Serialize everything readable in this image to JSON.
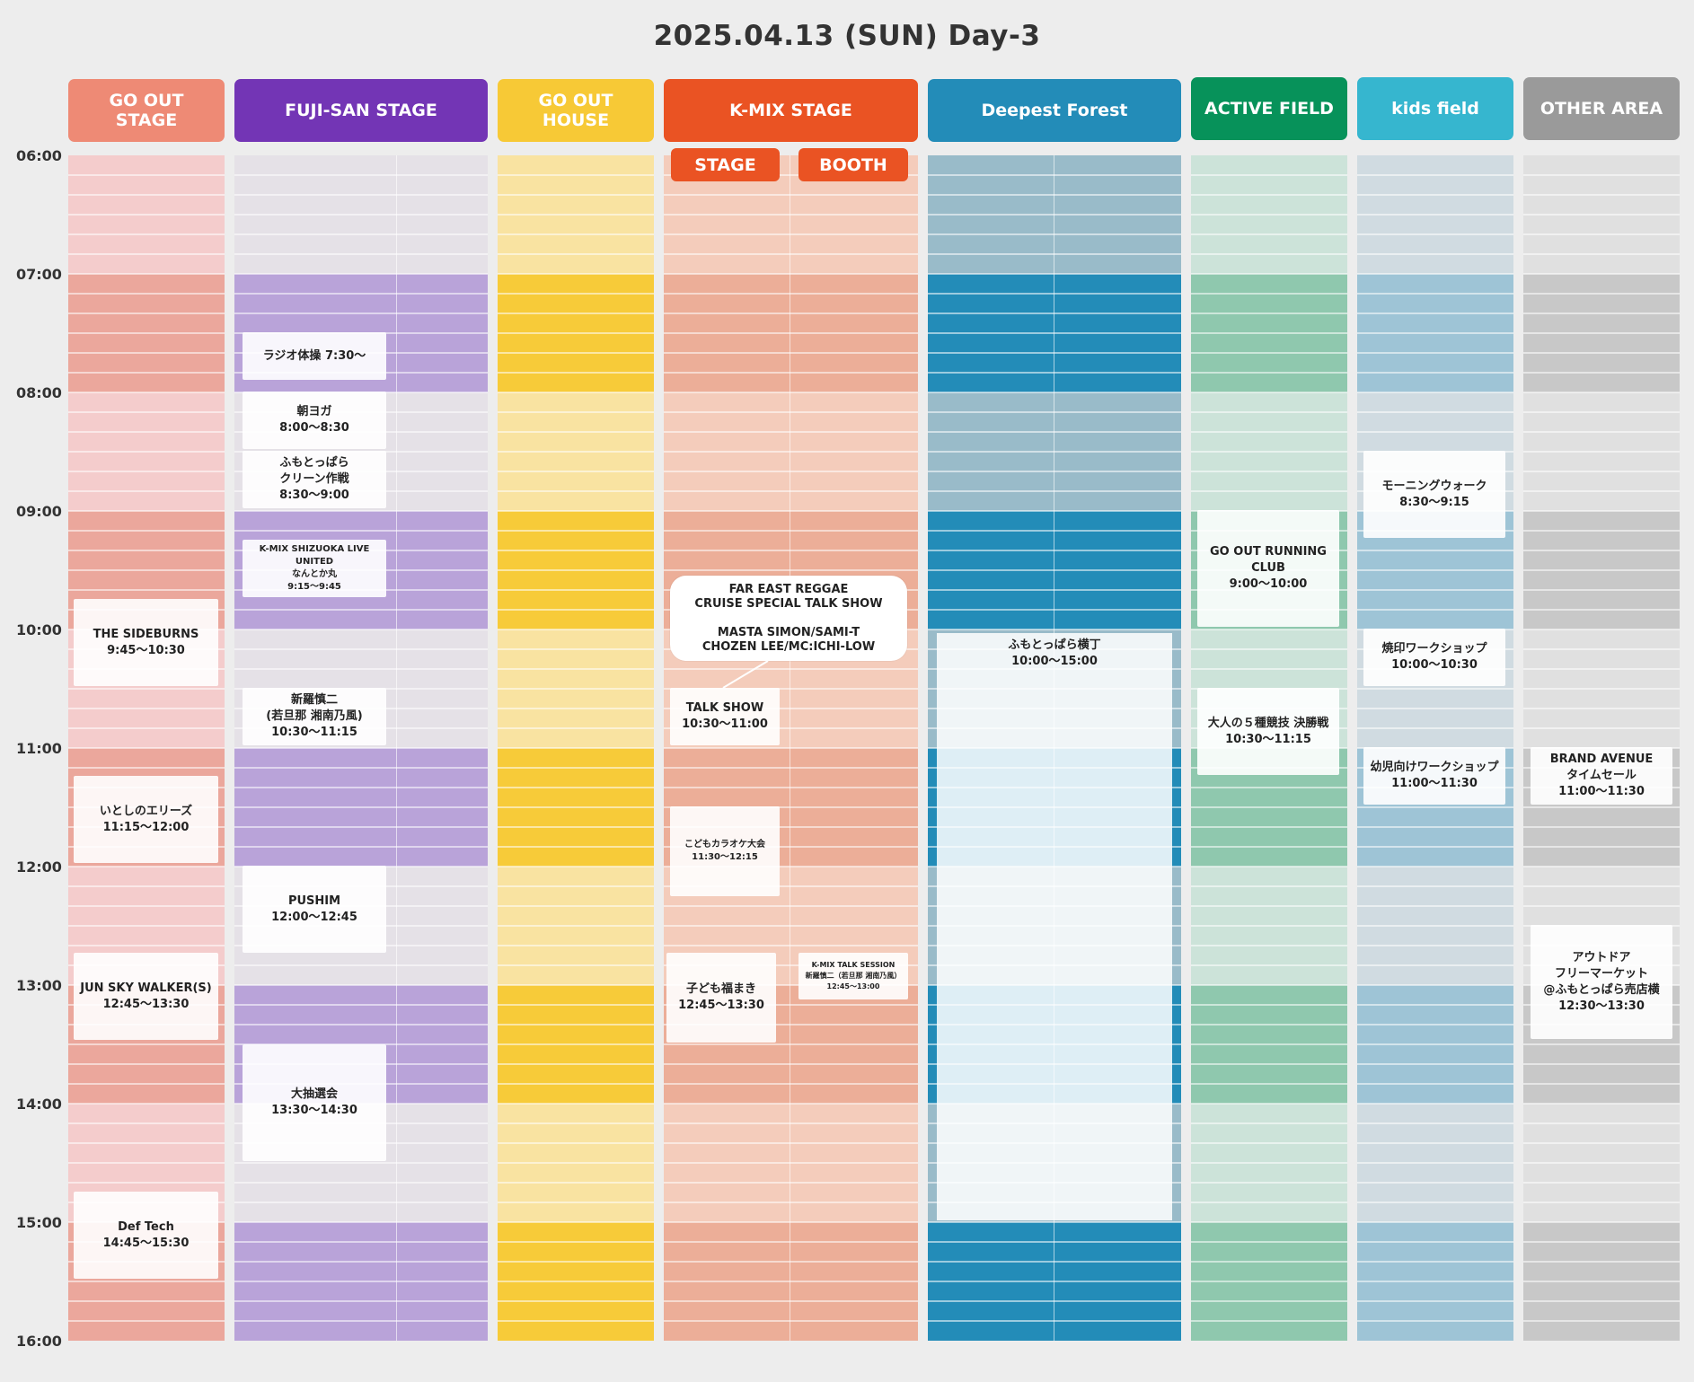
{
  "page_title": "2025.04.13 (SUN) Day-3",
  "time_labels": [
    "06:00",
    "07:00",
    "08:00",
    "09:00",
    "10:00",
    "11:00",
    "12:00",
    "13:00",
    "14:00",
    "15:00",
    "16:00"
  ],
  "stages": [
    {
      "key": "goout_stage",
      "label": "GO OUT\nSTAGE",
      "header_color": "#ee8a75",
      "dark": "#eba79c",
      "light": "#f4cccc"
    },
    {
      "key": "fujisan",
      "label": "FUJI-SAN STAGE",
      "header_color": "#7335b5",
      "dark": "#b9a3d9",
      "light": "#e5e1e7"
    },
    {
      "key": "goout_house",
      "label": "GO OUT\nHOUSE",
      "header_color": "#f7c936",
      "dark": "#f7cb39",
      "light": "#f9e3a1"
    },
    {
      "key": "kmix",
      "label": "K-MIX STAGE",
      "header_color": "#ea5323",
      "dark": "#ecae98",
      "light": "#f4ccbb"
    },
    {
      "key": "deepest",
      "label": "Deepest Forest",
      "header_color": "#238cb8",
      "dark": "#238cb8",
      "light": "#99bbc9"
    },
    {
      "key": "active",
      "label": "ACTIVE FIELD",
      "header_color": "#07925a",
      "dark": "#8fc8ae",
      "light": "#cce3d9"
    },
    {
      "key": "kids",
      "label": "kids field",
      "header_color": "#36b6cf",
      "dark": "#9ec4d6",
      "light": "#d0dbe1"
    },
    {
      "key": "other",
      "label": "OTHER AREA",
      "header_color": "#9a9a9a",
      "dark": "#c8c8c8",
      "light": "#e0e0e0"
    }
  ],
  "kmix_sub": {
    "stage": "STAGE",
    "booth": "BOOTH"
  },
  "events": {
    "goout_stage": [
      {
        "text": "THE SIDEBURNS\n9:45〜10:30"
      },
      {
        "text": "いとしのエリーズ\n11:15〜12:00"
      },
      {
        "text": "JUN SKY WALKER(S)\n12:45〜13:30"
      },
      {
        "text": "Def Tech\n14:45〜15:30"
      }
    ],
    "fujisan": [
      {
        "text": "ラジオ体操 7:30〜"
      },
      {
        "text": "朝ヨガ\n8:00〜8:30"
      },
      {
        "text": "ふもとっぱら\nクリーン作戦\n8:30〜9:00"
      },
      {
        "text": "K-MIX SHIZUOKA LIVE UNITED\nなんとか丸\n9:15〜9:45"
      },
      {
        "text": "新羅慎二\n(若旦那 湘南乃風)\n10:30〜11:15"
      },
      {
        "text": "PUSHIM\n12:00〜12:45"
      },
      {
        "text": "大抽選会\n13:30〜14:30"
      }
    ],
    "kmix": [
      {
        "text": "FAR EAST REGGAE\nCRUISE SPECIAL TALK SHOW\n\nMASTA SIMON/SAMI-T\nCHOZEN LEE/MC:ICHI-LOW"
      },
      {
        "text": "TALK SHOW\n10:30〜11:00"
      },
      {
        "text": "こどもカラオケ大会\n11:30〜12:15"
      },
      {
        "text": "子ども福まき\n12:45〜13:30"
      },
      {
        "text": "K-MIX TALK SESSION\n新羅慎二（若旦那 湘南乃風）\n12:45〜13:00"
      }
    ],
    "deepest": [
      {
        "text": "ふもとっぱら横丁\n10:00〜15:00"
      }
    ],
    "active": [
      {
        "text": "GO OUT RUNNING CLUB\n9:00〜10:00"
      },
      {
        "text": "大人の５種競技 決勝戦\n10:30〜11:15"
      }
    ],
    "kids": [
      {
        "text": "モーニングウォーク\n8:30〜9:15"
      },
      {
        "text": "焼印ワークショップ\n10:00〜10:30"
      },
      {
        "text": "幼児向けワークショップ\n11:00〜11:30"
      }
    ],
    "other": [
      {
        "text": "BRAND AVENUE\nタイムセール\n11:00〜11:30"
      },
      {
        "text": "アウトドア\nフリーマーケット\n@ふもとっぱら売店横\n12:30〜13:30"
      }
    ]
  }
}
